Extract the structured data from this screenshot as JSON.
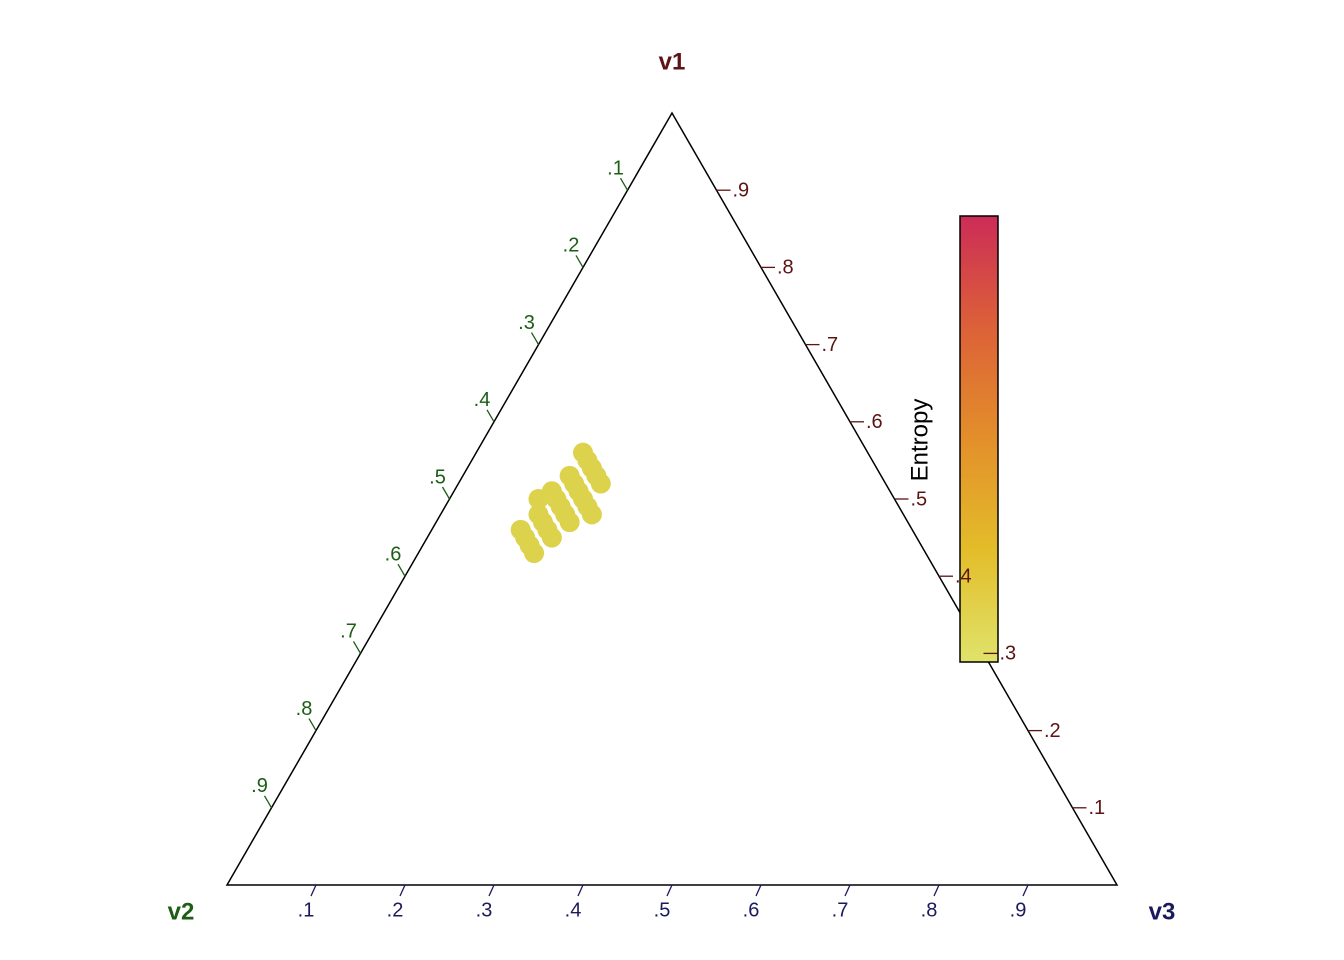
{
  "chart_data": {
    "type": "ternary",
    "axes": [
      {
        "name": "v1",
        "color": "#5c1414",
        "ticks": [
          {
            "value": 0.1,
            "label": ".1"
          },
          {
            "value": 0.2,
            "label": ".2"
          },
          {
            "value": 0.3,
            "label": ".3"
          },
          {
            "value": 0.4,
            "label": ".4"
          },
          {
            "value": 0.5,
            "label": ".5"
          },
          {
            "value": 0.6,
            "label": ".6"
          },
          {
            "value": 0.7,
            "label": ".7"
          },
          {
            "value": 0.8,
            "label": ".8"
          },
          {
            "value": 0.9,
            "label": ".9"
          }
        ]
      },
      {
        "name": "v2",
        "color": "#1b5e14",
        "ticks": [
          {
            "value": 0.1,
            "label": ".1"
          },
          {
            "value": 0.2,
            "label": ".2"
          },
          {
            "value": 0.3,
            "label": ".3"
          },
          {
            "value": 0.4,
            "label": ".4"
          },
          {
            "value": 0.5,
            "label": ".5"
          },
          {
            "value": 0.6,
            "label": ".6"
          },
          {
            "value": 0.7,
            "label": ".7"
          },
          {
            "value": 0.8,
            "label": ".8"
          },
          {
            "value": 0.9,
            "label": ".9"
          }
        ]
      },
      {
        "name": "v3",
        "color": "#1c1a5e",
        "ticks": [
          {
            "value": 0.1,
            "label": ".1"
          },
          {
            "value": 0.2,
            "label": ".2"
          },
          {
            "value": 0.3,
            "label": ".3"
          },
          {
            "value": 0.4,
            "label": ".4"
          },
          {
            "value": 0.5,
            "label": ".5"
          },
          {
            "value": 0.6,
            "label": ".6"
          },
          {
            "value": 0.7,
            "label": ".7"
          },
          {
            "value": 0.8,
            "label": ".8"
          },
          {
            "value": 0.9,
            "label": ".9"
          }
        ]
      }
    ],
    "series": [
      {
        "color": "#dcd24c",
        "v1": [
          0.49,
          0.5,
          0.48,
          0.51,
          0.47,
          0.52,
          0.46,
          0.53,
          0.5,
          0.48,
          0.45,
          0.54,
          0.49,
          0.51,
          0.47,
          0.55,
          0.44,
          0.52,
          0.46,
          0.5,
          0.56,
          0.48,
          0.53,
          0.45,
          0.43
        ],
        "v2": [
          0.38,
          0.38,
          0.38,
          0.35,
          0.41,
          0.35,
          0.41,
          0.35,
          0.35,
          0.41,
          0.41,
          0.32,
          0.35,
          0.38,
          0.38,
          0.32,
          0.44,
          0.32,
          0.44,
          0.4,
          0.32,
          0.35,
          0.32,
          0.44,
          0.44
        ],
        "v3": [
          0.13,
          0.12,
          0.14,
          0.14,
          0.12,
          0.13,
          0.13,
          0.12,
          0.15,
          0.11,
          0.14,
          0.14,
          0.16,
          0.11,
          0.15,
          0.13,
          0.12,
          0.16,
          0.1,
          0.1,
          0.12,
          0.17,
          0.15,
          0.11,
          0.13
        ]
      }
    ],
    "colorbar": {
      "title": "Entropy",
      "colors": [
        "#e0e36a",
        "#e3bd2a",
        "#e38f2a",
        "#dc6138",
        "#cc2c57"
      ]
    }
  }
}
